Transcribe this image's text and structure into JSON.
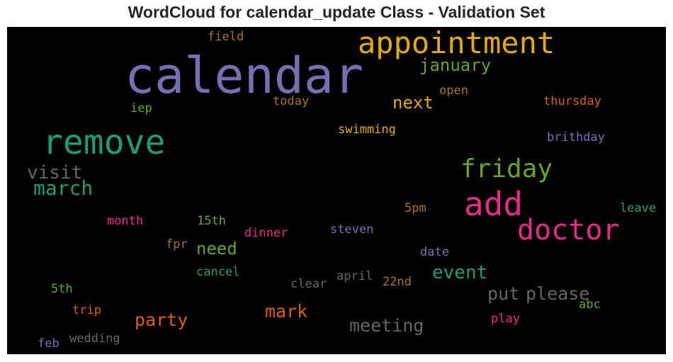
{
  "title": "WordCloud for calendar_update Class - Validation Set",
  "palette": {
    "purple": "#7570b3",
    "green": "#1b9e77",
    "orange": "#d95f02",
    "pink": "#e7298a",
    "lime": "#66a61e",
    "gold": "#e6ab02",
    "brown": "#a6761d",
    "gray": "#666666"
  },
  "words": [
    {
      "text": "calendar"
    },
    {
      "text": "appointment"
    },
    {
      "text": "remove"
    },
    {
      "text": "add"
    },
    {
      "text": "doctor"
    },
    {
      "text": "friday"
    },
    {
      "text": "march"
    },
    {
      "text": "visit"
    },
    {
      "text": "january"
    },
    {
      "text": "next"
    },
    {
      "text": "event"
    },
    {
      "text": "meeting"
    },
    {
      "text": "party"
    },
    {
      "text": "mark"
    },
    {
      "text": "please"
    },
    {
      "text": "put"
    },
    {
      "text": "need"
    },
    {
      "text": "field"
    },
    {
      "text": "open"
    },
    {
      "text": "today"
    },
    {
      "text": "thursday"
    },
    {
      "text": "iep"
    },
    {
      "text": "swimming"
    },
    {
      "text": "brithday"
    },
    {
      "text": "5pm"
    },
    {
      "text": "leave"
    },
    {
      "text": "month"
    },
    {
      "text": "15th"
    },
    {
      "text": "steven"
    },
    {
      "text": "dinner"
    },
    {
      "text": "fpr"
    },
    {
      "text": "date"
    },
    {
      "text": "cancel"
    },
    {
      "text": "april"
    },
    {
      "text": "22nd"
    },
    {
      "text": "clear"
    },
    {
      "text": "5th"
    },
    {
      "text": "abc"
    },
    {
      "text": "trip"
    },
    {
      "text": "play"
    },
    {
      "text": "wedding"
    },
    {
      "text": "feb"
    }
  ]
}
